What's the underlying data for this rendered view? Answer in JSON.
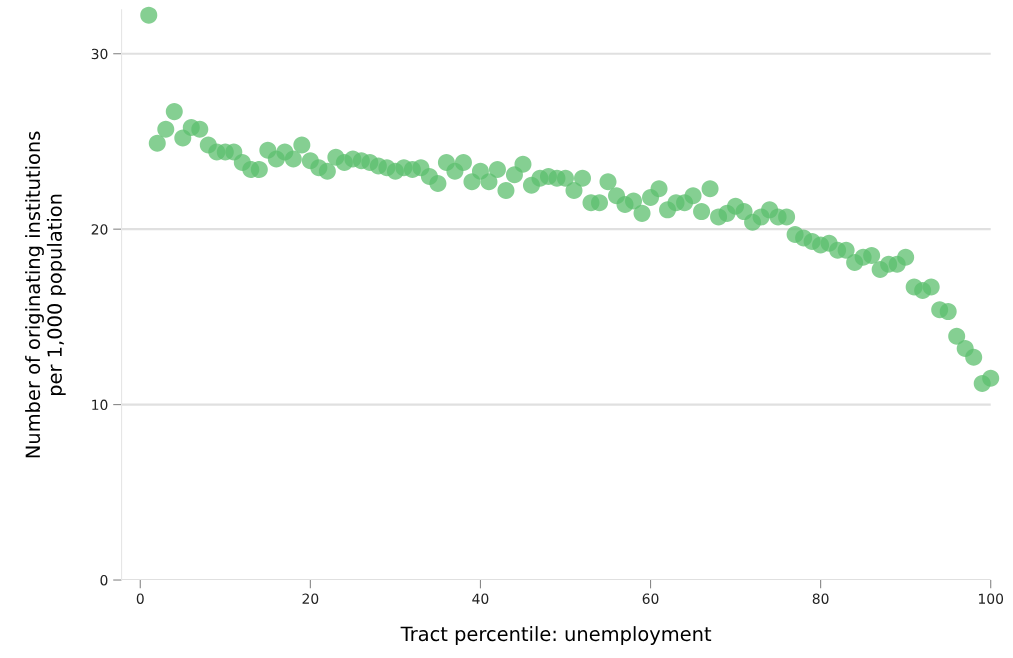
{
  "chart_data": {
    "type": "scatter",
    "xlabel": "Tract percentile: unemployment",
    "ylabel": "Number of originating institutions\nper 1,000 population",
    "x": [
      1,
      2,
      3,
      4,
      5,
      6,
      7,
      8,
      9,
      10,
      11,
      12,
      13,
      14,
      15,
      16,
      17,
      18,
      19,
      20,
      21,
      22,
      23,
      24,
      25,
      26,
      27,
      28,
      29,
      30,
      31,
      32,
      33,
      34,
      35,
      36,
      37,
      38,
      39,
      40,
      41,
      42,
      43,
      44,
      45,
      46,
      47,
      48,
      49,
      50,
      51,
      52,
      53,
      54,
      55,
      56,
      57,
      58,
      59,
      60,
      61,
      62,
      63,
      64,
      65,
      66,
      67,
      68,
      69,
      70,
      71,
      72,
      73,
      74,
      75,
      76,
      77,
      78,
      79,
      80,
      81,
      82,
      83,
      84,
      85,
      86,
      87,
      88,
      89,
      90,
      91,
      92,
      93,
      94,
      95,
      96,
      97,
      98,
      99,
      100
    ],
    "series": [
      {
        "color": "#5cbf6d",
        "values": [
          32.2,
          24.9,
          25.7,
          26.7,
          25.2,
          25.8,
          25.7,
          24.8,
          24.4,
          24.4,
          24.4,
          23.8,
          23.4,
          23.4,
          24.5,
          24.0,
          24.4,
          24.0,
          24.8,
          23.9,
          23.5,
          23.3,
          24.1,
          23.8,
          24.0,
          23.9,
          23.8,
          23.6,
          23.5,
          23.3,
          23.5,
          23.4,
          23.5,
          23.0,
          22.6,
          23.8,
          23.3,
          23.8,
          22.7,
          23.3,
          22.7,
          23.4,
          22.2,
          23.1,
          23.7,
          22.5,
          22.9,
          23.0,
          22.9,
          22.9,
          22.2,
          22.9,
          21.5,
          21.5,
          22.7,
          21.9,
          21.4,
          21.6,
          20.9,
          21.8,
          22.3,
          21.1,
          21.5,
          21.5,
          21.9,
          21.0,
          22.3,
          20.7,
          20.9,
          21.3,
          21.0,
          20.4,
          20.7,
          21.1,
          20.7,
          20.7,
          19.7,
          19.5,
          19.3,
          19.1,
          19.2,
          18.8,
          18.8,
          18.1,
          18.4,
          18.5,
          17.7,
          18.0,
          18.0,
          18.4,
          16.7,
          16.5,
          16.7,
          15.4,
          15.3,
          13.9,
          13.2,
          12.7,
          11.2,
          11.5
        ]
      }
    ],
    "xlim": [
      -2.2,
      100
    ],
    "ylim": [
      0,
      32.5
    ],
    "xticks": [
      0,
      20,
      40,
      60,
      80,
      100
    ],
    "yticks": [
      0,
      10,
      20,
      30
    ],
    "grid": "y",
    "marker": "circle",
    "legend": false
  }
}
